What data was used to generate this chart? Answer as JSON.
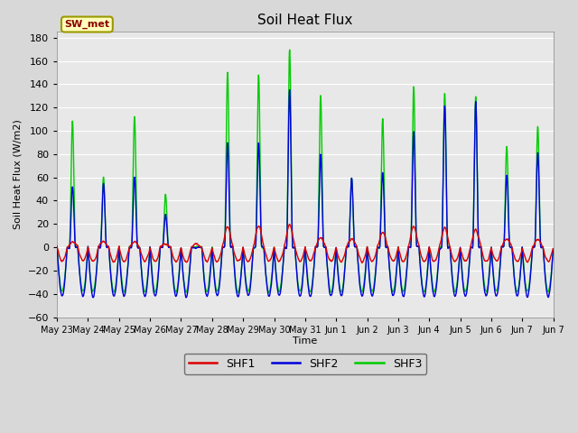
{
  "title": "Soil Heat Flux",
  "ylabel": "Soil Heat Flux (W/m2)",
  "xlabel": "Time",
  "ylim": [
    -60,
    185
  ],
  "yticks": [
    -60,
    -40,
    -20,
    0,
    20,
    40,
    60,
    80,
    100,
    120,
    140,
    160,
    180
  ],
  "bg_color": "#d8d8d8",
  "plot_bg_color": "#e8e8e8",
  "shf1_color": "#dd0000",
  "shf2_color": "#0000dd",
  "shf3_color": "#00cc00",
  "legend_label1": "SHF1",
  "legend_label2": "SHF2",
  "legend_label3": "SHF3",
  "annotation_text": "SW_met",
  "annotation_color": "#8b0000",
  "annotation_bg": "#ffffbb",
  "annotation_border": "#999900",
  "lw": 1.0,
  "tick_labels": [
    "May 23",
    "May 24",
    "May 25",
    "May 26",
    "May 27",
    "May 28",
    "May 29",
    "May 30",
    "May 31",
    "Jun 1",
    "Jun 2",
    "Jun 3",
    "Jun 4",
    "Jun 5",
    "Jun 6",
    "Jun 7"
  ],
  "shf3_peaks": [
    108,
    60,
    112,
    46,
    0,
    150,
    148,
    170,
    130,
    60,
    110,
    138,
    132,
    130,
    87,
    103
  ],
  "shf2_peaks": [
    52,
    55,
    60,
    28,
    0,
    90,
    90,
    135,
    79,
    60,
    65,
    100,
    122,
    125,
    62,
    80
  ],
  "shf1_peaks": [
    5,
    5,
    5,
    3,
    3,
    18,
    18,
    20,
    8,
    7,
    13,
    18,
    17,
    15,
    7,
    7
  ],
  "shf2_night": -42,
  "shf3_night": -38,
  "shf1_night": -12
}
